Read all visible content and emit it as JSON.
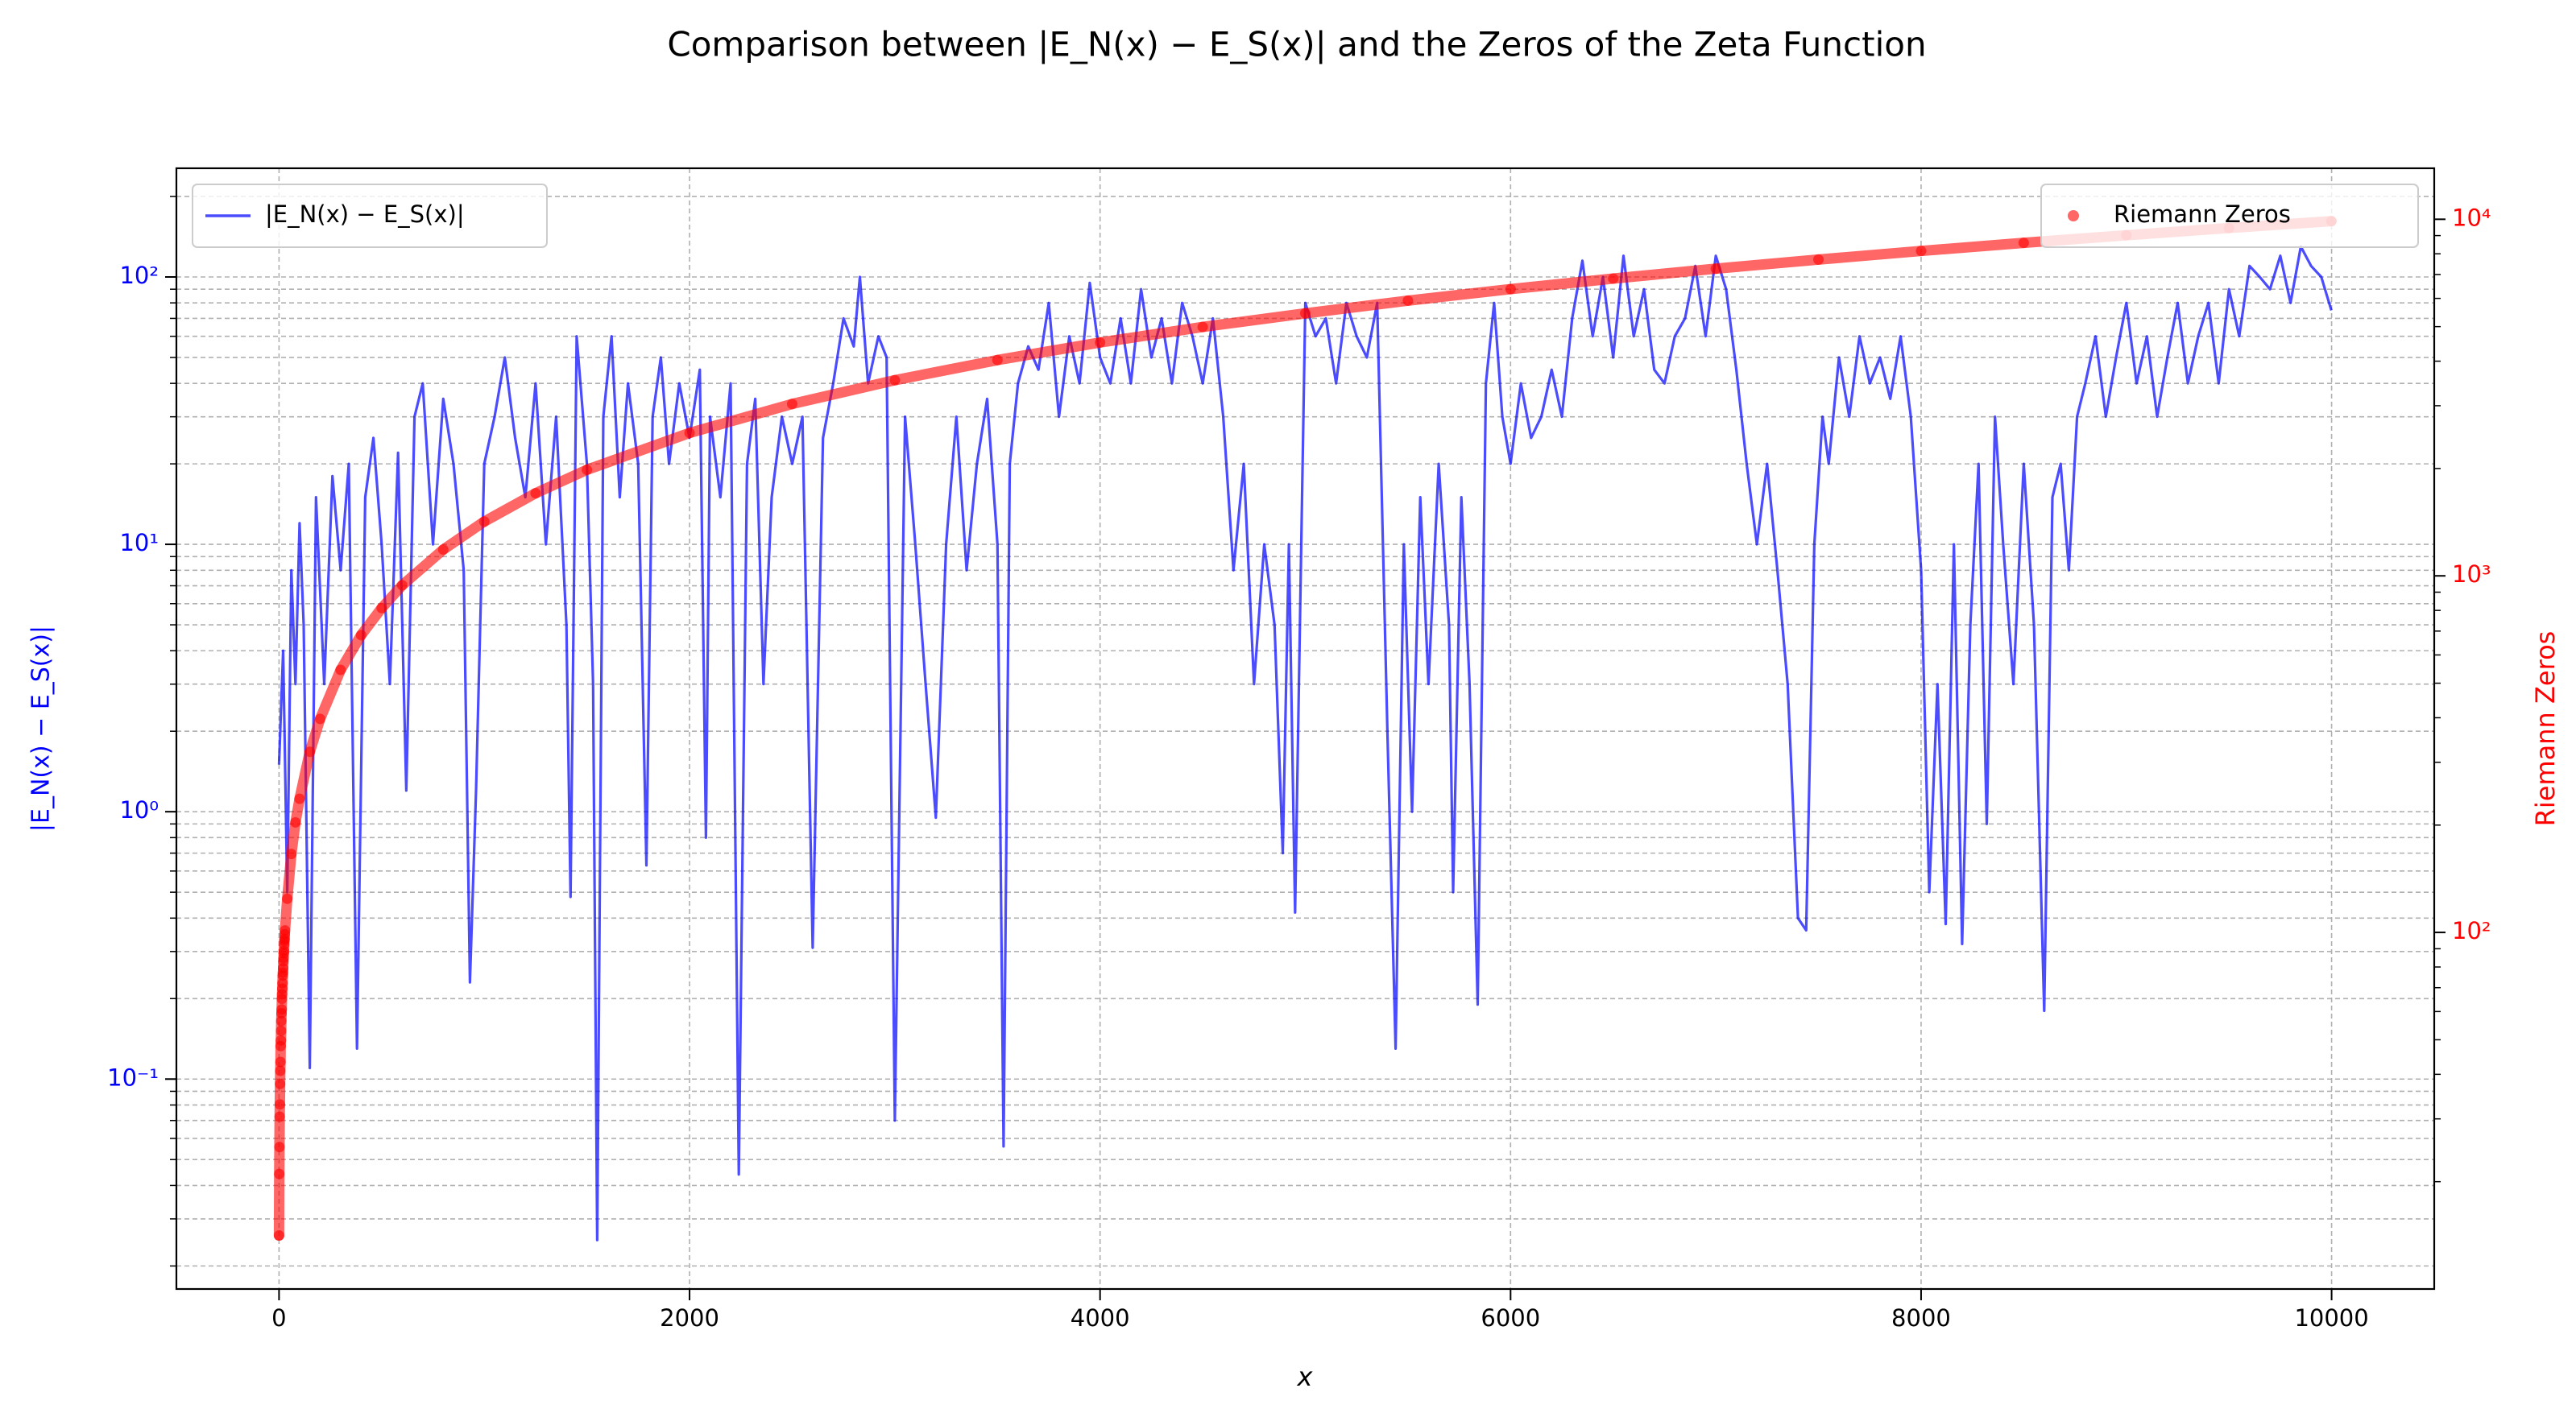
{
  "chart_data": {
    "type": "line",
    "title": "Comparison between |E_N(x) − E_S(x)| and the Zeros of the Zeta Function",
    "xlabel": "x",
    "ylabel": "|E_N(x) − E_S(x)|",
    "y2label": "Riemann Zeros",
    "xlim": [
      -500,
      10500
    ],
    "ylim": [
      0.0164,
      255
    ],
    "y2lim": [
      10,
      13900
    ],
    "ylog": true,
    "y2log": true,
    "grid": true,
    "ycolor": "#0000ff",
    "y2color": "#ff0000",
    "xticks": [
      0,
      2000,
      4000,
      6000,
      8000,
      10000
    ],
    "yticks": [
      {
        "value": 0.1,
        "label": "10⁻¹"
      },
      {
        "value": 1,
        "label": "10⁰"
      },
      {
        "value": 10,
        "label": "10¹"
      },
      {
        "value": 100,
        "label": "10²"
      }
    ],
    "yminorticks": [
      0.02,
      0.03,
      0.04,
      0.05,
      0.06,
      0.07,
      0.08,
      0.09,
      0.2,
      0.3,
      0.4,
      0.5,
      0.6,
      0.7,
      0.8,
      0.9,
      2,
      3,
      4,
      5,
      6,
      7,
      8,
      9,
      20,
      30,
      40,
      50,
      60,
      70,
      80,
      90,
      200
    ],
    "y2ticks": [
      {
        "value": 100,
        "label": "10²"
      },
      {
        "value": 1000,
        "label": "10³"
      },
      {
        "value": 10000,
        "label": "10⁴"
      }
    ],
    "y2minorticks": [
      20,
      30,
      40,
      50,
      60,
      70,
      80,
      90,
      200,
      300,
      400,
      500,
      600,
      700,
      800,
      900,
      2000,
      3000,
      4000,
      5000,
      6000,
      7000,
      8000,
      9000
    ],
    "legend": {
      "y": "upper left",
      "y2": "upper right"
    },
    "series": [
      {
        "name": "|E_N(x) − E_S(x)|",
        "type": "line",
        "axis": "y",
        "color": "#0000ff",
        "opacity": 0.7,
        "x": [
          0,
          20,
          40,
          60,
          80,
          100,
          120,
          150,
          180,
          220,
          260,
          300,
          340,
          380,
          420,
          460,
          500,
          540,
          580,
          620,
          660,
          700,
          750,
          800,
          850,
          900,
          930,
          960,
          1000,
          1050,
          1100,
          1150,
          1200,
          1250,
          1300,
          1350,
          1400,
          1420,
          1450,
          1500,
          1530,
          1550,
          1580,
          1620,
          1660,
          1700,
          1750,
          1790,
          1820,
          1860,
          1900,
          1950,
          2000,
          2050,
          2080,
          2100,
          2150,
          2200,
          2240,
          2280,
          2320,
          2360,
          2400,
          2450,
          2500,
          2550,
          2600,
          2650,
          2700,
          2750,
          2800,
          2830,
          2870,
          2920,
          2960,
          3000,
          3050,
          3100,
          3150,
          3200,
          3250,
          3300,
          3350,
          3400,
          3450,
          3500,
          3530,
          3560,
          3600,
          3650,
          3700,
          3750,
          3800,
          3850,
          3900,
          3950,
          4000,
          4050,
          4100,
          4150,
          4200,
          4250,
          4300,
          4350,
          4400,
          4450,
          4500,
          4550,
          4600,
          4650,
          4700,
          4750,
          4800,
          4850,
          4890,
          4920,
          4950,
          5000,
          5050,
          5100,
          5150,
          5200,
          5250,
          5300,
          5350,
          5400,
          5440,
          5480,
          5520,
          5560,
          5600,
          5650,
          5700,
          5720,
          5760,
          5800,
          5840,
          5880,
          5920,
          5960,
          6000,
          6050,
          6100,
          6150,
          6200,
          6250,
          6300,
          6350,
          6400,
          6450,
          6500,
          6550,
          6600,
          6650,
          6700,
          6750,
          6800,
          6850,
          6900,
          6950,
          7000,
          7050,
          7100,
          7150,
          7200,
          7250,
          7300,
          7350,
          7400,
          7440,
          7480,
          7520,
          7550,
          7600,
          7650,
          7700,
          7750,
          7800,
          7850,
          7900,
          7950,
          8000,
          8040,
          8080,
          8120,
          8160,
          8200,
          8240,
          8280,
          8320,
          8360,
          8400,
          8450,
          8500,
          8550,
          8600,
          8640,
          8680,
          8720,
          8760,
          8800,
          8850,
          8900,
          8950,
          9000,
          9050,
          9100,
          9150,
          9200,
          9250,
          9300,
          9350,
          9400,
          9450,
          9500,
          9550,
          9600,
          9650,
          9700,
          9750,
          9800,
          9850,
          9900,
          9950,
          9999
        ],
        "values": [
          1.5,
          4,
          0.5,
          8,
          3,
          12,
          5,
          0.11,
          15,
          3,
          18,
          8,
          20,
          0.13,
          15,
          25,
          10,
          3,
          22,
          1.2,
          30,
          40,
          10,
          35,
          20,
          8,
          0.23,
          1.2,
          20,
          30,
          50,
          25,
          15,
          40,
          10,
          30,
          5,
          0.48,
          60,
          20,
          3,
          0.025,
          30,
          60,
          15,
          40,
          20,
          0.63,
          30,
          50,
          20,
          40,
          25,
          45,
          0.8,
          30,
          15,
          40,
          0.044,
          20,
          35,
          3,
          15,
          30,
          20,
          30,
          0.31,
          25,
          40,
          70,
          55,
          100,
          40,
          60,
          50,
          0.07,
          30,
          10,
          3,
          0.95,
          10,
          30,
          8,
          20,
          35,
          10,
          0.056,
          20,
          40,
          55,
          45,
          80,
          30,
          60,
          40,
          95,
          50,
          40,
          70,
          40,
          90,
          50,
          70,
          40,
          80,
          60,
          40,
          70,
          30,
          8,
          20,
          3,
          10,
          5,
          0.7,
          10,
          0.42,
          80,
          60,
          70,
          40,
          80,
          60,
          50,
          80,
          2,
          0.13,
          10,
          1,
          15,
          3,
          20,
          5,
          0.5,
          15,
          3,
          0.19,
          40,
          80,
          30,
          20,
          40,
          25,
          30,
          45,
          30,
          70,
          115,
          60,
          100,
          50,
          120,
          60,
          90,
          45,
          40,
          60,
          70,
          110,
          60,
          120,
          90,
          45,
          20,
          10,
          20,
          8,
          3,
          0.4,
          0.36,
          10,
          30,
          20,
          50,
          30,
          60,
          40,
          50,
          35,
          60,
          30,
          8,
          0.5,
          3,
          0.38,
          10,
          0.32,
          5,
          20,
          0.9,
          30,
          10,
          3,
          20,
          5,
          0.18,
          15,
          20,
          8,
          30,
          40,
          60,
          30,
          50,
          80,
          40,
          60,
          30,
          50,
          80,
          40,
          60,
          80,
          40,
          90,
          60,
          110,
          100,
          90,
          120,
          80,
          130,
          110,
          100,
          75
        ]
      },
      {
        "name": "Riemann Zeros",
        "type": "scatter",
        "axis": "y2",
        "color": "#ff0000",
        "opacity": 0.6,
        "x": [
          0,
          1,
          2,
          3,
          4,
          5,
          6,
          7,
          8,
          9,
          10,
          11,
          12,
          13,
          14,
          15,
          16,
          17,
          18,
          19,
          20,
          21,
          22,
          23,
          24,
          25,
          26,
          27,
          28,
          29,
          40,
          60,
          80,
          100,
          150,
          200,
          300,
          400,
          500,
          600,
          800,
          1000,
          1250,
          1500,
          2000,
          2500,
          3000,
          3500,
          4000,
          4500,
          5000,
          5500,
          6000,
          6500,
          7000,
          7500,
          8000,
          8500,
          9000,
          9500,
          9999
        ],
        "values": [
          14.13,
          21.02,
          25.01,
          30.42,
          32.94,
          37.59,
          40.92,
          43.33,
          48.01,
          49.77,
          52.97,
          56.45,
          59.35,
          60.83,
          65.11,
          67.08,
          69.55,
          72.07,
          75.7,
          77.14,
          79.34,
          82.91,
          84.74,
          87.43,
          88.81,
          92.49,
          94.65,
          95.87,
          98.83,
          101.32,
          124.26,
          166,
          203.5,
          237,
          321,
          397,
          545,
          682,
          812,
          941,
          1185,
          1420,
          1705,
          1983,
          2516,
          3034,
          3537,
          4029,
          4513,
          4989,
          5448,
          5913,
          6369,
          6820,
          7267,
          7710,
          8150,
          8587,
          9020,
          9451,
          9879
        ]
      }
    ]
  }
}
